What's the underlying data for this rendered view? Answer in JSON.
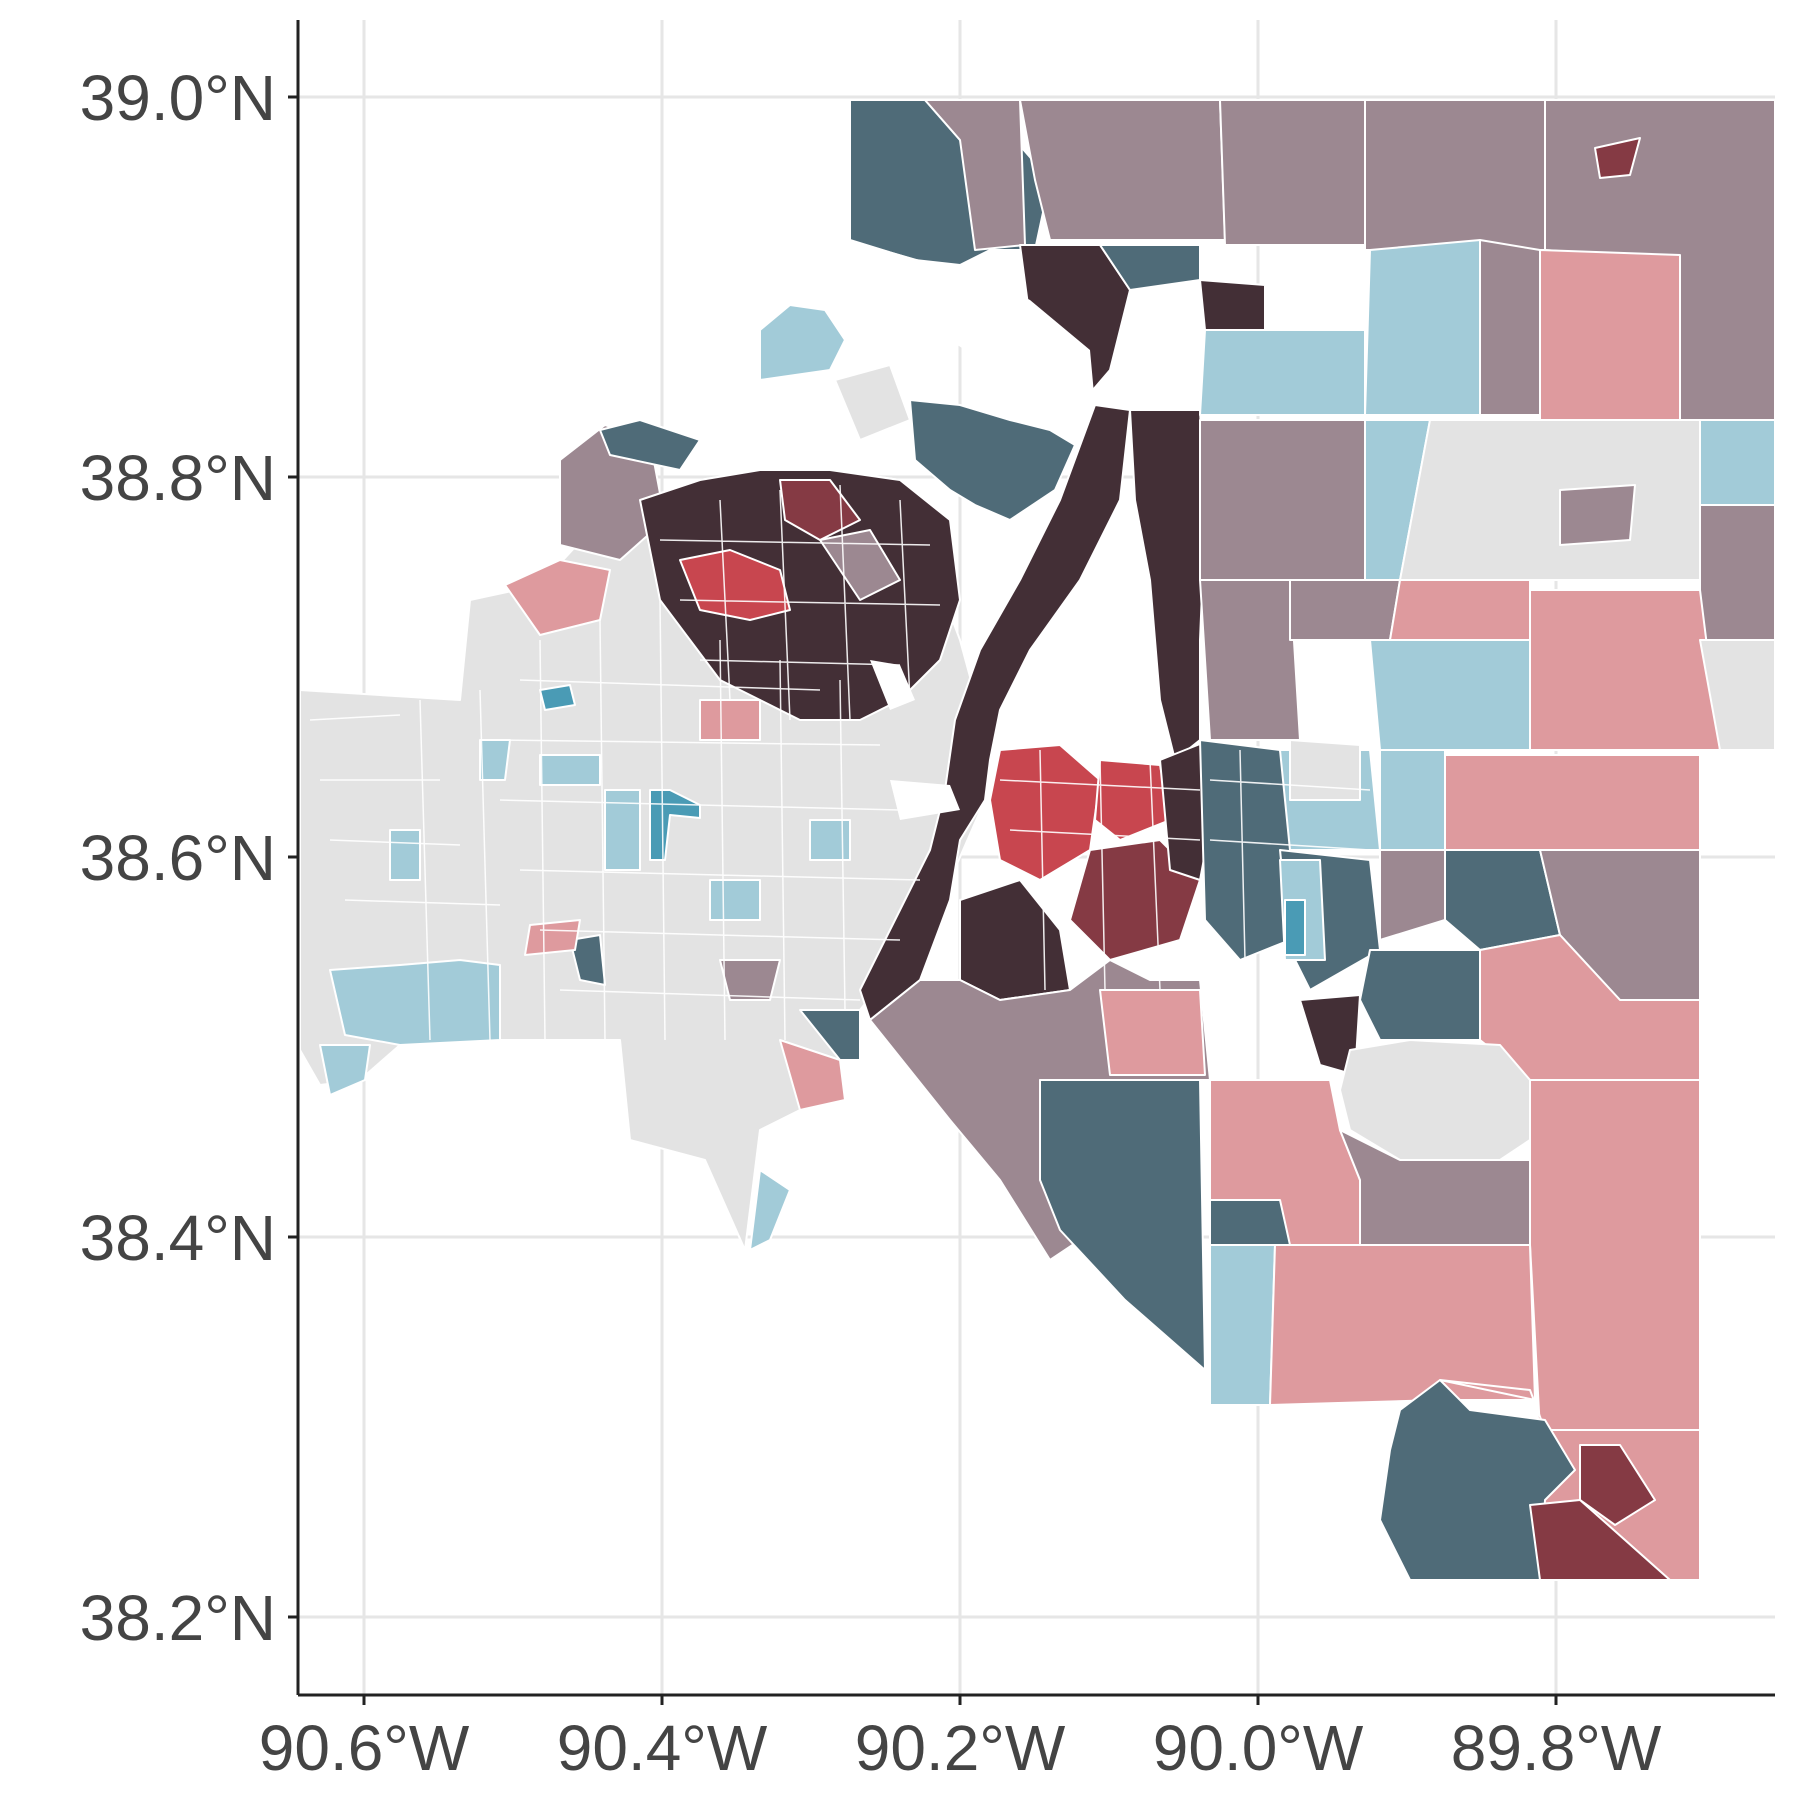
{
  "map": {
    "type": "choropleth",
    "title": "",
    "x_axis": {
      "ticks": [
        "90.6°W",
        "90.4°W",
        "90.2°W",
        "90.0°W",
        "89.8°W"
      ],
      "values": [
        -90.6,
        -90.4,
        -90.2,
        -90.0,
        -89.8
      ],
      "range": [
        -90.645,
        -89.655
      ]
    },
    "y_axis": {
      "ticks": [
        "39.0°N",
        "38.8°N",
        "38.6°N",
        "38.4°N",
        "38.2°N"
      ],
      "values": [
        39.0,
        38.8,
        38.6,
        38.4,
        38.2
      ],
      "range": [
        38.16,
        39.05
      ]
    },
    "grid": true,
    "legend": "none",
    "palette": {
      "very_dark": "#432f36",
      "dark_red": "#853a44",
      "red": "#c8464f",
      "pink": "#de9a9e",
      "mauve": "#9c8891",
      "dark_teal": "#4f6b78",
      "teal": "#4a9bb5",
      "light_blue": "#a2cbd8",
      "light_gray": "#e3e3e3"
    }
  }
}
